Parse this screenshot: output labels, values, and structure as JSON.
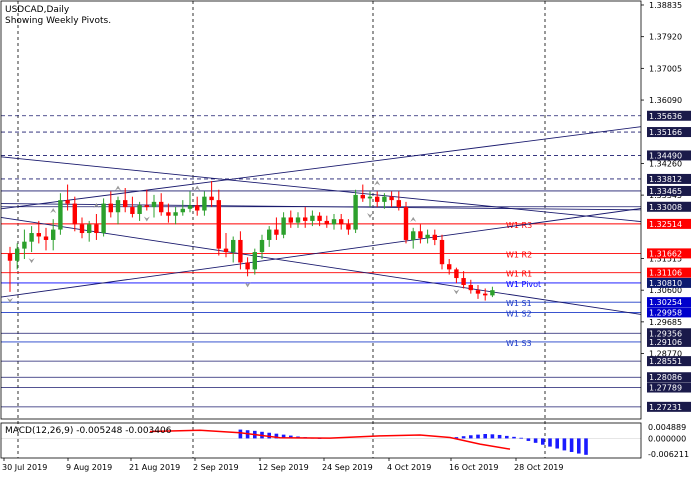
{
  "header": {
    "symbol_line": "USDCAD,Daily",
    "subtitle": "Showing Weekly Pivots."
  },
  "colors": {
    "bull": "#2ca02c",
    "bear": "#ff0000",
    "pivot_level": "#0000ff",
    "support": "#1e3cc8",
    "resistance": "#ff0000",
    "trendline": "#1a1a6e",
    "grid": "#000000",
    "macd_hist": "#1a1aff",
    "macd_signal": "#ff0000",
    "tag_blue": "#1e2c8c",
    "tag_navy": "#0c1a6e",
    "tag_red": "#ff0000",
    "tag_dark": "#1a1a4a",
    "tag_darkblue": "#0000cc"
  },
  "price_axis": {
    "labels": [
      "1.38835",
      "1.37920",
      "1.37005",
      "1.36090",
      "1.34260",
      "1.33345",
      "1.31515",
      "1.30600",
      "1.29685",
      "1.28770"
    ]
  },
  "price_tags": [
    {
      "text": "1.35636",
      "price": 1.35636,
      "style": "dark"
    },
    {
      "text": "1.35166",
      "price": 1.35166,
      "style": "dark"
    },
    {
      "text": "1.34490",
      "price": 1.3449,
      "style": "dark"
    },
    {
      "text": "1.33812",
      "price": 1.33812,
      "style": "dark"
    },
    {
      "text": "1.33465",
      "price": 1.33465,
      "style": "dark"
    },
    {
      "text": "1.33008",
      "price": 1.33008,
      "style": "dark"
    },
    {
      "text": "1.32514",
      "price": 1.32514,
      "style": "red"
    },
    {
      "text": "1.31662",
      "price": 1.31662,
      "style": "red"
    },
    {
      "text": "1.31106",
      "price": 1.31106,
      "style": "red"
    },
    {
      "text": "1.30810",
      "price": 1.3081,
      "style": "navy"
    },
    {
      "text": "1.30254",
      "price": 1.30254,
      "style": "blue"
    },
    {
      "text": "1.29958",
      "price": 1.29958,
      "style": "blue"
    },
    {
      "text": "1.29356",
      "price": 1.29356,
      "style": "dark"
    },
    {
      "text": "1.29106",
      "price": 1.29106,
      "style": "dark"
    },
    {
      "text": "1.28551",
      "price": 1.28551,
      "style": "dark"
    },
    {
      "text": "1.28086",
      "price": 1.28086,
      "style": "dark"
    },
    {
      "text": "1.27789",
      "price": 1.27789,
      "style": "dark"
    },
    {
      "text": "1.27231",
      "price": 1.27231,
      "style": "dark"
    }
  ],
  "pivot_levels": [
    {
      "name": "W1 R3",
      "price": 1.32514,
      "kind": "resistance"
    },
    {
      "name": "W1 R2",
      "price": 1.31662,
      "kind": "resistance"
    },
    {
      "name": "W1 R1",
      "price": 1.31106,
      "kind": "resistance"
    },
    {
      "name": "W1 Pivot",
      "price": 1.3081,
      "kind": "pivot"
    },
    {
      "name": "W1 S1",
      "price": 1.30254,
      "kind": "support"
    },
    {
      "name": "W1 S2",
      "price": 1.29958,
      "kind": "support"
    },
    {
      "name": "W1 S3",
      "price": 1.29106,
      "kind": "support"
    }
  ],
  "time_axis": {
    "labels": [
      "30 Jul 2019",
      "9 Aug 2019",
      "21 Aug 2019",
      "2 Sep 2019",
      "12 Sep 2019",
      "24 Sep 2019",
      "4 Oct 2019",
      "16 Oct 2019",
      "28 Oct 2019"
    ]
  },
  "macd": {
    "label": "MACD(12,26,9) -0.005248 -0.003406",
    "axis_labels": [
      "0.004889",
      "0.000000",
      "-0.006211"
    ],
    "hist": [
      0,
      0,
      0,
      0,
      0,
      0,
      0,
      0,
      0,
      0,
      0,
      0,
      0,
      0,
      0,
      0,
      0,
      0,
      0,
      0,
      0,
      0,
      0,
      0,
      0,
      0,
      0,
      0,
      0,
      0,
      0,
      0,
      0.0028,
      0.0026,
      0.0024,
      0.0021,
      0.0018,
      0.0015,
      0.0012,
      0.0009,
      0.0006,
      0.0004,
      0.0002,
      0.0001,
      0,
      0,
      0,
      0,
      0,
      0,
      0,
      0,
      0,
      0,
      0,
      0,
      0,
      0,
      0,
      0,
      0,
      0,
      0.0004,
      0.0007,
      0.001,
      0.0012,
      0.0014,
      0.0013,
      0.0011,
      0.0008,
      0.0005,
      0.0002,
      -0.0008,
      -0.0014,
      -0.002,
      -0.0026,
      -0.0032,
      -0.0038,
      -0.0043,
      -0.0048,
      -0.0052
    ]
  },
  "chart_data": {
    "type": "candlestick",
    "title": "USDCAD,Daily",
    "x_labels": [
      "30 Jul 2019",
      "9 Aug 2019",
      "21 Aug 2019",
      "2 Sep 2019",
      "12 Sep 2019",
      "24 Sep 2019",
      "4 Oct 2019",
      "16 Oct 2019",
      "28 Oct 2019"
    ],
    "ylim": [
      1.2688,
      1.3895
    ],
    "candles": [
      {
        "o": 1.3165,
        "h": 1.3185,
        "l": 1.3055,
        "c": 1.3145
      },
      {
        "o": 1.3145,
        "h": 1.3195,
        "l": 1.312,
        "c": 1.318
      },
      {
        "o": 1.318,
        "h": 1.3235,
        "l": 1.315,
        "c": 1.32
      },
      {
        "o": 1.32,
        "h": 1.3245,
        "l": 1.317,
        "c": 1.3225
      },
      {
        "o": 1.3225,
        "h": 1.326,
        "l": 1.3195,
        "c": 1.3215
      },
      {
        "o": 1.3215,
        "h": 1.324,
        "l": 1.3175,
        "c": 1.3205
      },
      {
        "o": 1.3205,
        "h": 1.3265,
        "l": 1.3175,
        "c": 1.3235
      },
      {
        "o": 1.3235,
        "h": 1.334,
        "l": 1.322,
        "c": 1.332
      },
      {
        "o": 1.332,
        "h": 1.3365,
        "l": 1.329,
        "c": 1.331
      },
      {
        "o": 1.331,
        "h": 1.333,
        "l": 1.323,
        "c": 1.325
      },
      {
        "o": 1.325,
        "h": 1.327,
        "l": 1.321,
        "c": 1.3225
      },
      {
        "o": 1.3225,
        "h": 1.326,
        "l": 1.32,
        "c": 1.325
      },
      {
        "o": 1.325,
        "h": 1.328,
        "l": 1.3205,
        "c": 1.3225
      },
      {
        "o": 1.3225,
        "h": 1.3325,
        "l": 1.3215,
        "c": 1.331
      },
      {
        "o": 1.331,
        "h": 1.3345,
        "l": 1.327,
        "c": 1.3285
      },
      {
        "o": 1.3285,
        "h": 1.333,
        "l": 1.325,
        "c": 1.332
      },
      {
        "o": 1.332,
        "h": 1.3355,
        "l": 1.3285,
        "c": 1.33
      },
      {
        "o": 1.33,
        "h": 1.333,
        "l": 1.327,
        "c": 1.328
      },
      {
        "o": 1.328,
        "h": 1.3315,
        "l": 1.326,
        "c": 1.3305
      },
      {
        "o": 1.3305,
        "h": 1.335,
        "l": 1.329,
        "c": 1.33
      },
      {
        "o": 1.33,
        "h": 1.3335,
        "l": 1.327,
        "c": 1.3315
      },
      {
        "o": 1.3315,
        "h": 1.334,
        "l": 1.3275,
        "c": 1.3285
      },
      {
        "o": 1.3285,
        "h": 1.331,
        "l": 1.3255,
        "c": 1.3275
      },
      {
        "o": 1.3275,
        "h": 1.33,
        "l": 1.325,
        "c": 1.3285
      },
      {
        "o": 1.3285,
        "h": 1.332,
        "l": 1.3275,
        "c": 1.3295
      },
      {
        "o": 1.3295,
        "h": 1.3345,
        "l": 1.3285,
        "c": 1.3305
      },
      {
        "o": 1.3305,
        "h": 1.333,
        "l": 1.3275,
        "c": 1.329
      },
      {
        "o": 1.329,
        "h": 1.3345,
        "l": 1.3275,
        "c": 1.333
      },
      {
        "o": 1.333,
        "h": 1.3375,
        "l": 1.33,
        "c": 1.332
      },
      {
        "o": 1.332,
        "h": 1.335,
        "l": 1.316,
        "c": 1.318
      },
      {
        "o": 1.318,
        "h": 1.3225,
        "l": 1.3155,
        "c": 1.317
      },
      {
        "o": 1.317,
        "h": 1.3215,
        "l": 1.314,
        "c": 1.3205
      },
      {
        "o": 1.3205,
        "h": 1.323,
        "l": 1.312,
        "c": 1.314
      },
      {
        "o": 1.314,
        "h": 1.3155,
        "l": 1.31,
        "c": 1.312
      },
      {
        "o": 1.312,
        "h": 1.318,
        "l": 1.3105,
        "c": 1.317
      },
      {
        "o": 1.317,
        "h": 1.322,
        "l": 1.315,
        "c": 1.3205
      },
      {
        "o": 1.3205,
        "h": 1.3245,
        "l": 1.3185,
        "c": 1.3235
      },
      {
        "o": 1.3235,
        "h": 1.327,
        "l": 1.3205,
        "c": 1.322
      },
      {
        "o": 1.322,
        "h": 1.3285,
        "l": 1.321,
        "c": 1.327
      },
      {
        "o": 1.327,
        "h": 1.329,
        "l": 1.324,
        "c": 1.3255
      },
      {
        "o": 1.3255,
        "h": 1.3285,
        "l": 1.324,
        "c": 1.327
      },
      {
        "o": 1.327,
        "h": 1.33,
        "l": 1.324,
        "c": 1.326
      },
      {
        "o": 1.326,
        "h": 1.329,
        "l": 1.3245,
        "c": 1.3275
      },
      {
        "o": 1.3275,
        "h": 1.3285,
        "l": 1.3245,
        "c": 1.326
      },
      {
        "o": 1.326,
        "h": 1.3275,
        "l": 1.324,
        "c": 1.325
      },
      {
        "o": 1.325,
        "h": 1.328,
        "l": 1.3235,
        "c": 1.3265
      },
      {
        "o": 1.3265,
        "h": 1.328,
        "l": 1.3235,
        "c": 1.325
      },
      {
        "o": 1.325,
        "h": 1.3265,
        "l": 1.322,
        "c": 1.3235
      },
      {
        "o": 1.3235,
        "h": 1.335,
        "l": 1.3225,
        "c": 1.3335
      },
      {
        "o": 1.3335,
        "h": 1.3365,
        "l": 1.3315,
        "c": 1.3325
      },
      {
        "o": 1.3325,
        "h": 1.3345,
        "l": 1.33,
        "c": 1.333
      },
      {
        "o": 1.333,
        "h": 1.3345,
        "l": 1.33,
        "c": 1.3315
      },
      {
        "o": 1.3315,
        "h": 1.334,
        "l": 1.3295,
        "c": 1.333
      },
      {
        "o": 1.333,
        "h": 1.3345,
        "l": 1.33,
        "c": 1.332
      },
      {
        "o": 1.332,
        "h": 1.3345,
        "l": 1.329,
        "c": 1.33
      },
      {
        "o": 1.33,
        "h": 1.3315,
        "l": 1.3195,
        "c": 1.3205
      },
      {
        "o": 1.3205,
        "h": 1.324,
        "l": 1.318,
        "c": 1.323
      },
      {
        "o": 1.323,
        "h": 1.325,
        "l": 1.3195,
        "c": 1.321
      },
      {
        "o": 1.321,
        "h": 1.3235,
        "l": 1.3195,
        "c": 1.322
      },
      {
        "o": 1.322,
        "h": 1.3235,
        "l": 1.319,
        "c": 1.3205
      },
      {
        "o": 1.3205,
        "h": 1.322,
        "l": 1.312,
        "c": 1.3135
      },
      {
        "o": 1.3135,
        "h": 1.315,
        "l": 1.3105,
        "c": 1.312
      },
      {
        "o": 1.312,
        "h": 1.3125,
        "l": 1.308,
        "c": 1.3095
      },
      {
        "o": 1.3095,
        "h": 1.3115,
        "l": 1.3065,
        "c": 1.3075
      },
      {
        "o": 1.3075,
        "h": 1.309,
        "l": 1.305,
        "c": 1.306
      },
      {
        "o": 1.306,
        "h": 1.3075,
        "l": 1.3035,
        "c": 1.305
      },
      {
        "o": 1.305,
        "h": 1.3065,
        "l": 1.303,
        "c": 1.3045
      },
      {
        "o": 1.3045,
        "h": 1.307,
        "l": 1.304,
        "c": 1.306
      }
    ]
  }
}
